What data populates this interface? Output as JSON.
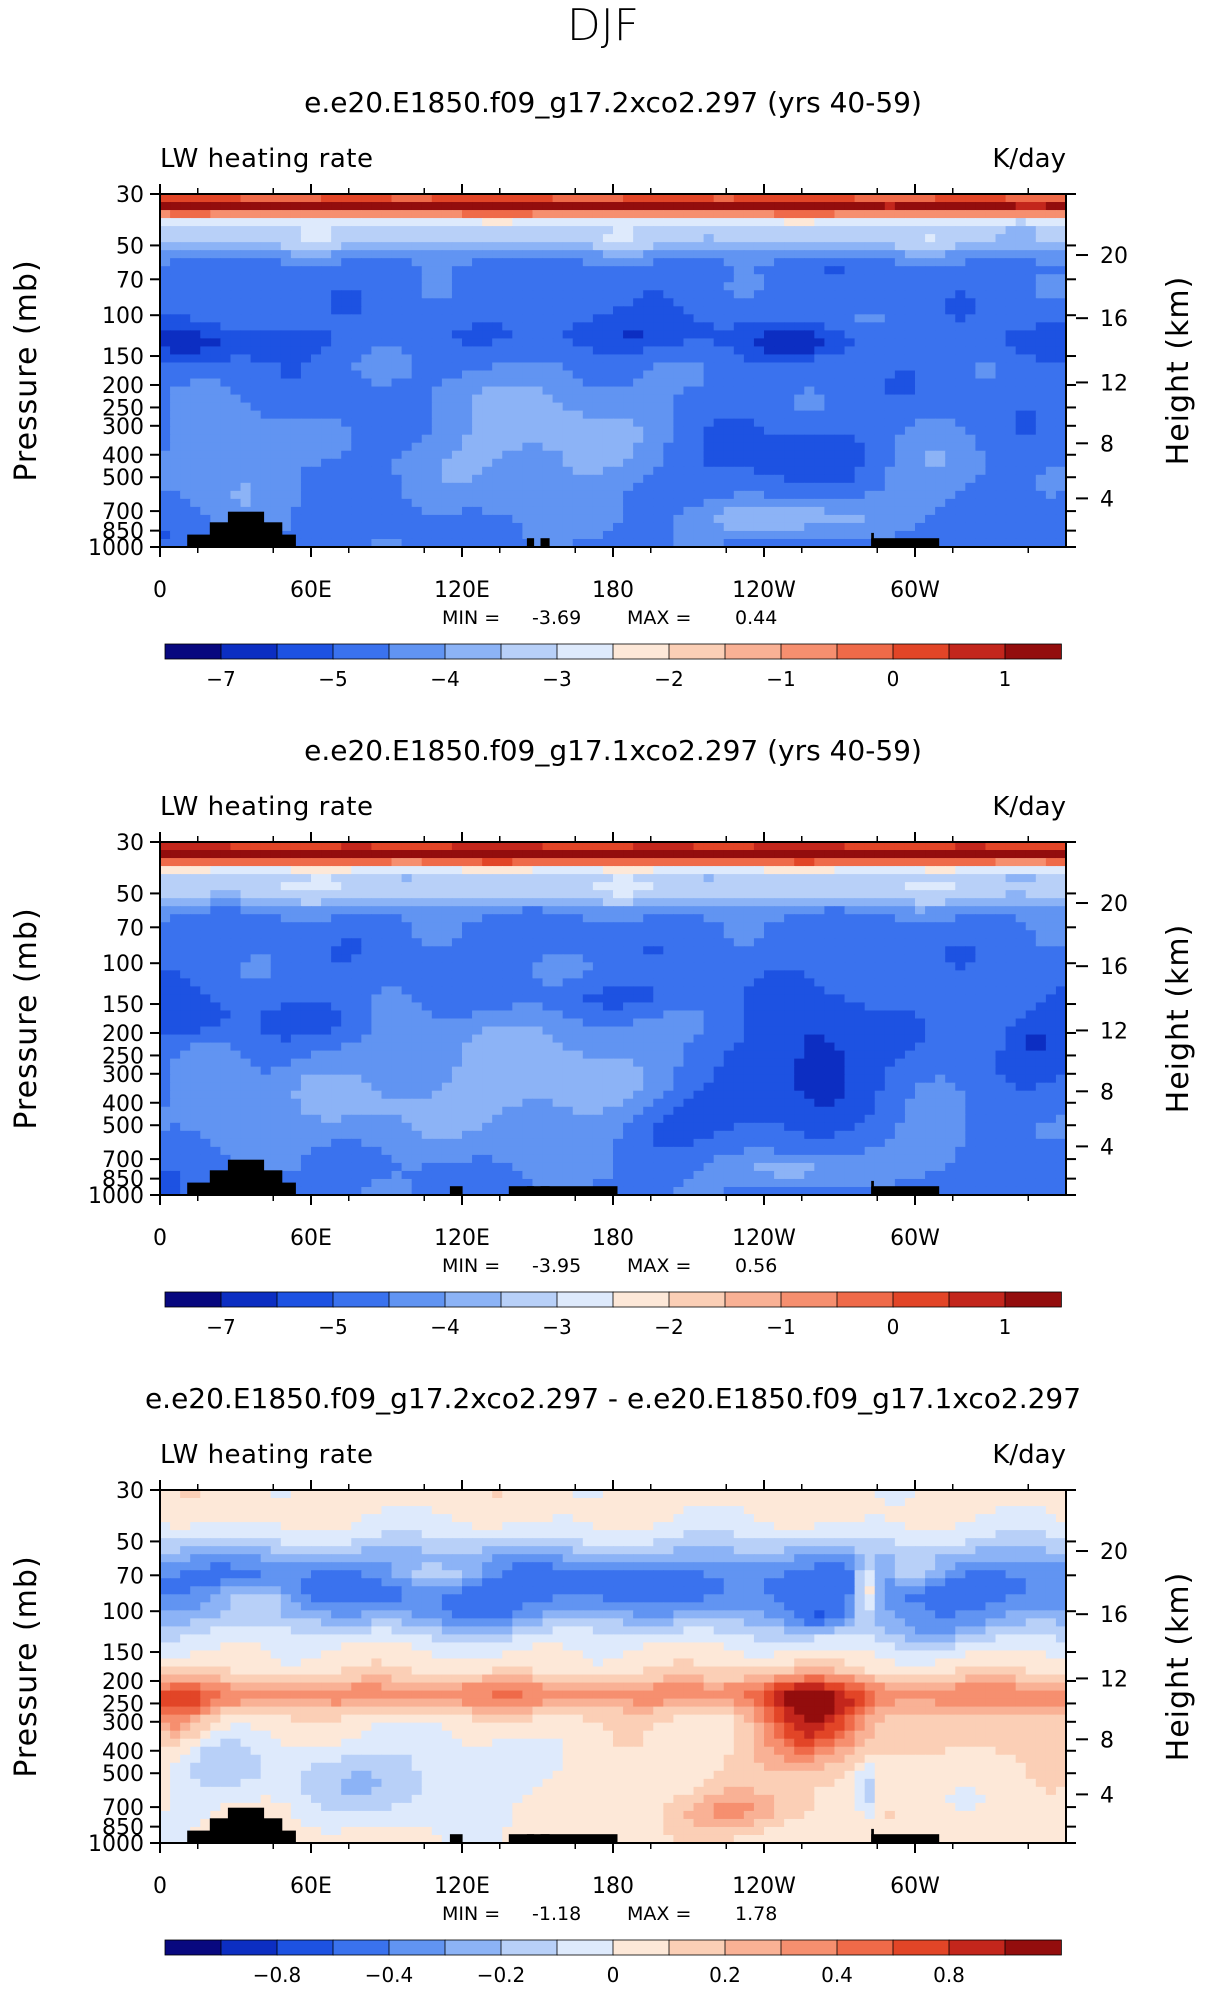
{
  "header": {
    "title": "DJF"
  },
  "chart_data": [
    {
      "type": "heatmap",
      "title": "e.e20.E1850.f09_g17.2xco2.297 (yrs 40-59)",
      "left_label": "LW heating rate",
      "right_label": "K/day",
      "xlabel": "",
      "x_ticks": [
        "0",
        "60E",
        "120E",
        "180",
        "120W",
        "60W"
      ],
      "ylabel": "Pressure (mb)",
      "y_ticks": [
        "30",
        "50",
        "70",
        "100",
        "150",
        "200",
        "250",
        "300",
        "400",
        "500",
        "700",
        "850",
        "1000"
      ],
      "y2label": "Height (km)",
      "y2_ticks": [
        "20",
        "16",
        "12",
        "8",
        "4"
      ],
      "min_text": "MIN =",
      "min_value": "-3.69",
      "max_text": "MAX =",
      "max_value": "0.44",
      "colorbar_labels": [
        "−7",
        "−5",
        "−4",
        "−3",
        "−2",
        "−1",
        "0",
        "1"
      ],
      "colorbar_colors": [
        "#08087f",
        "#0c2ec2",
        "#1d52e2",
        "#3a72ee",
        "#6194f2",
        "#8cb3f6",
        "#b8d0f8",
        "#deeafc",
        "#fde8d8",
        "#fbcfb6",
        "#f9b195",
        "#f68f6f",
        "#ef6a49",
        "#e24527",
        "#c3261c",
        "#930d0d"
      ],
      "field": {
        "base": 3,
        "features": [
          {
            "x": 0.5,
            "y": 0.03,
            "sx": 3.0,
            "sy": 0.04,
            "a": 12.0
          },
          {
            "x": 0.5,
            "y": 0.12,
            "sx": 3.0,
            "sy": 0.05,
            "a": 3.0
          },
          {
            "x": 0.04,
            "y": 0.42,
            "sx": 0.07,
            "sy": 0.05,
            "a": -1.5
          },
          {
            "x": 0.13,
            "y": 0.42,
            "sx": 0.06,
            "sy": 0.04,
            "a": -1.2
          },
          {
            "x": 0.5,
            "y": 0.4,
            "sx": 0.12,
            "sy": 0.06,
            "a": -1.6
          },
          {
            "x": 0.71,
            "y": 0.42,
            "sx": 0.06,
            "sy": 0.04,
            "a": -1.8
          },
          {
            "x": 0.66,
            "y": 0.75,
            "sx": 0.09,
            "sy": 0.09,
            "a": -1.3
          },
          {
            "x": 0.97,
            "y": 0.42,
            "sx": 0.05,
            "sy": 0.05,
            "a": -1.2
          },
          {
            "x": 0.42,
            "y": 0.7,
            "sx": 0.14,
            "sy": 0.22,
            "a": 2.0
          },
          {
            "x": 0.08,
            "y": 0.77,
            "sx": 0.06,
            "sy": 0.16,
            "a": 1.8
          },
          {
            "x": 0.68,
            "y": 0.92,
            "sx": 0.09,
            "sy": 0.05,
            "a": 2.6
          },
          {
            "x": 0.86,
            "y": 0.8,
            "sx": 0.06,
            "sy": 0.12,
            "a": 1.4
          }
        ]
      }
    },
    {
      "type": "heatmap",
      "title": "e.e20.E1850.f09_g17.1xco2.297 (yrs 40-59)",
      "left_label": "LW heating rate",
      "right_label": "K/day",
      "xlabel": "",
      "x_ticks": [
        "0",
        "60E",
        "120E",
        "180",
        "120W",
        "60W"
      ],
      "ylabel": "Pressure (mb)",
      "y_ticks": [
        "30",
        "50",
        "70",
        "100",
        "150",
        "200",
        "250",
        "300",
        "400",
        "500",
        "700",
        "850",
        "1000"
      ],
      "y2label": "Height (km)",
      "y2_ticks": [
        "20",
        "16",
        "12",
        "8",
        "4"
      ],
      "min_text": "MIN =",
      "min_value": "-3.95",
      "max_text": "MAX =",
      "max_value": "0.56",
      "colorbar_labels": [
        "−7",
        "−5",
        "−4",
        "−3",
        "−2",
        "−1",
        "0",
        "1"
      ],
      "colorbar_colors": [
        "#08087f",
        "#0c2ec2",
        "#1d52e2",
        "#3a72ee",
        "#6194f2",
        "#8cb3f6",
        "#b8d0f8",
        "#deeafc",
        "#fde8d8",
        "#fbcfb6",
        "#f9b195",
        "#f68f6f",
        "#ef6a49",
        "#e24527",
        "#c3261c",
        "#930d0d"
      ],
      "field": {
        "base": 3,
        "features": [
          {
            "x": 0.5,
            "y": 0.03,
            "sx": 3.0,
            "sy": 0.04,
            "a": 13.0
          },
          {
            "x": 0.5,
            "y": 0.13,
            "sx": 3.0,
            "sy": 0.06,
            "a": 3.2
          },
          {
            "x": 0.03,
            "y": 0.5,
            "sx": 0.05,
            "sy": 0.07,
            "a": -1.4
          },
          {
            "x": 0.18,
            "y": 0.5,
            "sx": 0.05,
            "sy": 0.05,
            "a": -1.2
          },
          {
            "x": 0.5,
            "y": 0.44,
            "sx": 0.1,
            "sy": 0.05,
            "a": -1.2
          },
          {
            "x": 0.72,
            "y": 0.6,
            "sx": 0.07,
            "sy": 0.16,
            "a": -2.2
          },
          {
            "x": 0.6,
            "y": 0.78,
            "sx": 0.09,
            "sy": 0.08,
            "a": -1.5
          },
          {
            "x": 0.97,
            "y": 0.55,
            "sx": 0.04,
            "sy": 0.09,
            "a": -1.5
          },
          {
            "x": 0.42,
            "y": 0.68,
            "sx": 0.15,
            "sy": 0.22,
            "a": 2.2
          },
          {
            "x": 0.2,
            "y": 0.75,
            "sx": 0.09,
            "sy": 0.14,
            "a": 1.5
          },
          {
            "x": 0.06,
            "y": 0.72,
            "sx": 0.04,
            "sy": 0.12,
            "a": 1.6
          },
          {
            "x": 0.69,
            "y": 0.93,
            "sx": 0.07,
            "sy": 0.05,
            "a": 2.2
          },
          {
            "x": 0.86,
            "y": 0.85,
            "sx": 0.05,
            "sy": 0.1,
            "a": 1.4
          }
        ]
      }
    },
    {
      "type": "heatmap",
      "title": "e.e20.E1850.f09_g17.2xco2.297 - e.e20.E1850.f09_g17.1xco2.297",
      "left_label": "LW heating rate",
      "right_label": "K/day",
      "xlabel": "",
      "x_ticks": [
        "0",
        "60E",
        "120E",
        "180",
        "120W",
        "60W"
      ],
      "ylabel": "Pressure (mb)",
      "y_ticks": [
        "30",
        "50",
        "70",
        "100",
        "150",
        "200",
        "250",
        "300",
        "400",
        "500",
        "700",
        "850",
        "1000"
      ],
      "y2label": "Height (km)",
      "y2_ticks": [
        "20",
        "16",
        "12",
        "8",
        "4"
      ],
      "min_text": "MIN =",
      "min_value": "-1.18",
      "max_text": "MAX =",
      "max_value": "1.78",
      "colorbar_labels": [
        "−0.8",
        "−0.4",
        "−0.2",
        "0",
        "0.2",
        "0.4",
        "0.8"
      ],
      "colorbar_colors": [
        "#08087f",
        "#0c2ec2",
        "#1d52e2",
        "#3a72ee",
        "#6194f2",
        "#8cb3f6",
        "#b8d0f8",
        "#deeafc",
        "#fde8d8",
        "#fbcfb6",
        "#f9b195",
        "#f68f6f",
        "#ef6a49",
        "#e24527",
        "#c3261c",
        "#930d0d"
      ],
      "field": {
        "base": 8,
        "features": [
          {
            "x": 0.5,
            "y": 0.27,
            "sx": 3.0,
            "sy": 0.12,
            "a": -5.0
          },
          {
            "x": 0.85,
            "y": 0.4,
            "sx": 0.08,
            "sy": 0.06,
            "a": -2.0
          },
          {
            "x": 0.73,
            "y": 0.36,
            "sx": 0.04,
            "sy": 0.04,
            "a": -2.5
          },
          {
            "x": 0.36,
            "y": 0.36,
            "sx": 0.08,
            "sy": 0.05,
            "a": -1.5
          },
          {
            "x": 0.1,
            "y": 0.3,
            "sx": 0.05,
            "sy": 0.04,
            "a": 2.5
          },
          {
            "x": 0.3,
            "y": 0.24,
            "sx": 0.06,
            "sy": 0.03,
            "a": 2.2
          },
          {
            "x": 0.83,
            "y": 0.24,
            "sx": 0.04,
            "sy": 0.04,
            "a": 2.5
          },
          {
            "x": 0.78,
            "y": 0.28,
            "sx": 0.012,
            "sy": 0.08,
            "a": 4.5
          },
          {
            "x": 0.5,
            "y": 0.58,
            "sx": 3.0,
            "sy": 0.05,
            "a": 3.0
          },
          {
            "x": 0.72,
            "y": 0.66,
            "sx": 0.06,
            "sy": 0.12,
            "a": 6.0
          },
          {
            "x": 0.63,
            "y": 0.91,
            "sx": 0.07,
            "sy": 0.06,
            "a": 2.8
          },
          {
            "x": 0.02,
            "y": 0.64,
            "sx": 0.03,
            "sy": 0.08,
            "a": 3.0
          },
          {
            "x": 0.95,
            "y": 0.68,
            "sx": 0.05,
            "sy": 0.08,
            "a": 1.5
          },
          {
            "x": 0.24,
            "y": 0.82,
            "sx": 0.14,
            "sy": 0.12,
            "a": -2.2
          },
          {
            "x": 0.06,
            "y": 0.78,
            "sx": 0.05,
            "sy": 0.1,
            "a": -1.5
          },
          {
            "x": 0.78,
            "y": 0.86,
            "sx": 0.012,
            "sy": 0.08,
            "a": -2.5
          }
        ]
      }
    }
  ]
}
